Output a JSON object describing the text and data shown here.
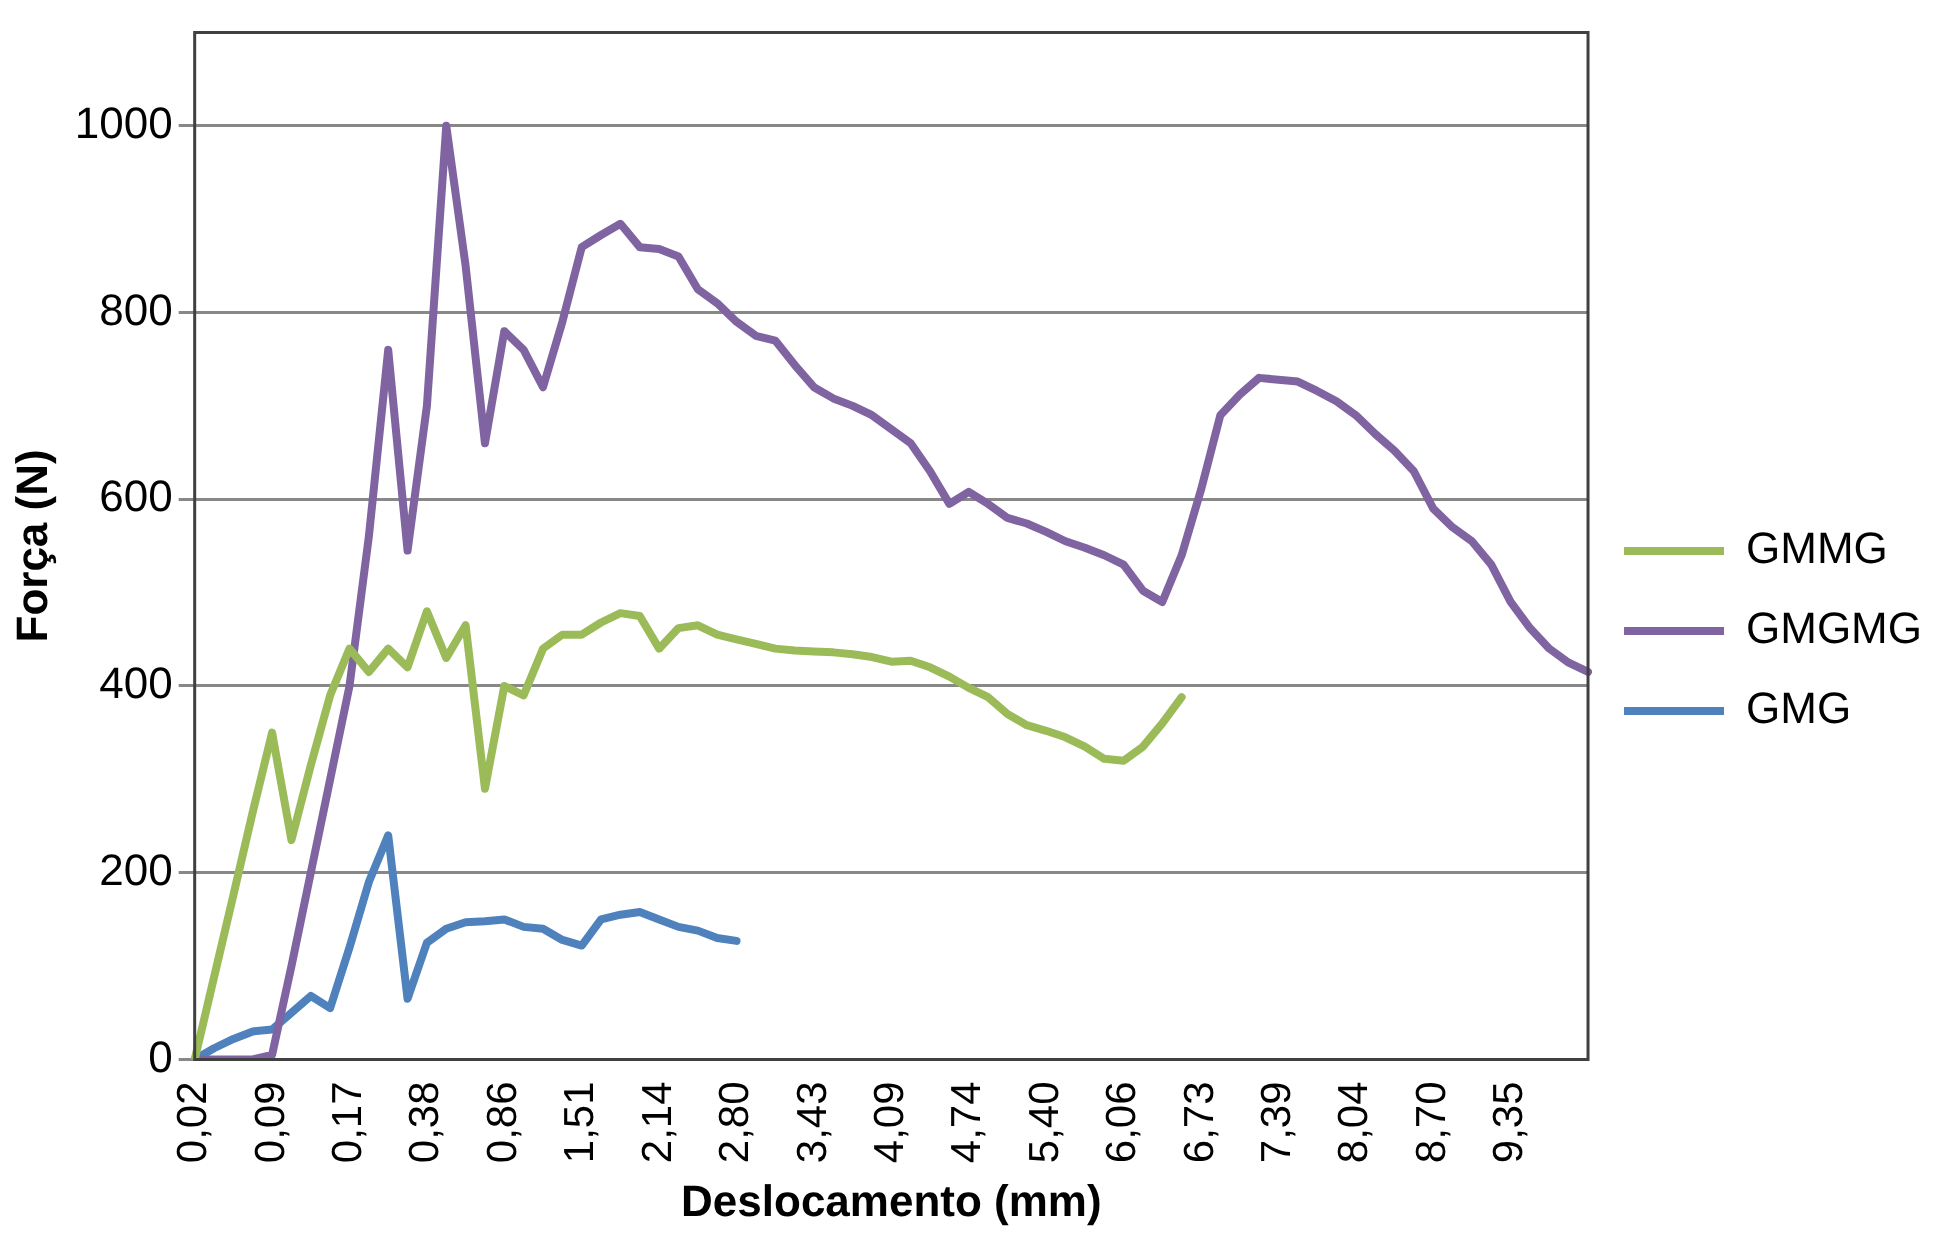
{
  "chart_data": {
    "type": "line",
    "xlabel": "Deslocamento (mm)",
    "ylabel": "Força (N)",
    "categories": [
      "0,02",
      null,
      null,
      null,
      "0,09",
      null,
      null,
      null,
      "0,17",
      null,
      null,
      null,
      "0,38",
      null,
      null,
      null,
      "0,86",
      null,
      null,
      null,
      "1,51",
      null,
      null,
      null,
      "2,14",
      null,
      null,
      null,
      "2,80",
      null,
      null,
      null,
      "3,43",
      null,
      null,
      null,
      "4,09",
      null,
      null,
      null,
      "4,74",
      null,
      null,
      null,
      "5,40",
      null,
      null,
      null,
      "6,06",
      null,
      null,
      null,
      "6,73",
      null,
      null,
      null,
      "7,39",
      null,
      null,
      null,
      "8,04",
      null,
      null,
      null,
      "8,70",
      null,
      null,
      null,
      "9,35",
      null,
      null,
      null,
      null
    ],
    "series": [
      {
        "name": "GMMG",
        "color": "#9bbb59",
        "values": [
          0,
          88,
          176,
          265,
          350,
          235,
          315,
          390,
          440,
          415,
          440,
          420,
          480,
          430,
          465,
          290,
          400,
          390,
          440,
          455,
          455,
          468,
          478,
          475,
          440,
          462,
          465,
          455,
          450,
          445,
          440,
          438,
          437,
          436,
          434,
          431,
          426,
          427,
          420,
          410,
          398,
          388,
          370,
          358,
          352,
          345,
          335,
          322,
          320,
          335,
          360,
          388,
          null,
          null,
          null,
          null,
          null,
          null,
          null,
          null,
          null,
          null,
          null,
          null,
          null,
          null,
          null,
          null,
          null,
          null,
          null,
          null,
          null
        ]
      },
      {
        "name": "GMGMG",
        "color": "#8064a2",
        "values": [
          0,
          0,
          0,
          0,
          5,
          100,
          200,
          300,
          400,
          560,
          760,
          545,
          700,
          1000,
          850,
          660,
          780,
          760,
          720,
          790,
          870,
          883,
          895,
          870,
          868,
          860,
          825,
          810,
          790,
          775,
          770,
          744,
          720,
          708,
          700,
          690,
          675,
          660,
          630,
          595,
          608,
          595,
          580,
          574,
          565,
          555,
          548,
          540,
          530,
          502,
          490,
          540,
          610,
          690,
          712,
          730,
          728,
          726,
          716,
          705,
          690,
          670,
          652,
          630,
          590,
          570,
          555,
          530,
          490,
          462,
          440,
          425,
          415
        ]
      },
      {
        "name": "GMG",
        "color": "#4f81bd",
        "values": [
          0,
          12,
          22,
          30,
          32,
          50,
          68,
          55,
          120,
          190,
          240,
          65,
          125,
          140,
          147,
          148,
          150,
          142,
          140,
          128,
          122,
          150,
          155,
          158,
          150,
          142,
          138,
          130,
          127,
          null,
          null,
          null,
          null,
          null,
          null,
          null,
          null,
          null,
          null,
          null,
          null,
          null,
          null,
          null,
          null,
          null,
          null,
          null,
          null,
          null,
          null,
          null,
          null,
          null,
          null,
          null,
          null,
          null,
          null,
          null,
          null,
          null,
          null,
          null,
          null,
          null,
          null,
          null,
          null,
          null,
          null,
          null,
          null
        ]
      }
    ],
    "ylim": [
      0,
      1100
    ],
    "yticks": [
      0,
      200,
      400,
      600,
      800,
      1000
    ],
    "grid": "y",
    "legend": "right",
    "marker": "none",
    "line_style": "solid"
  }
}
